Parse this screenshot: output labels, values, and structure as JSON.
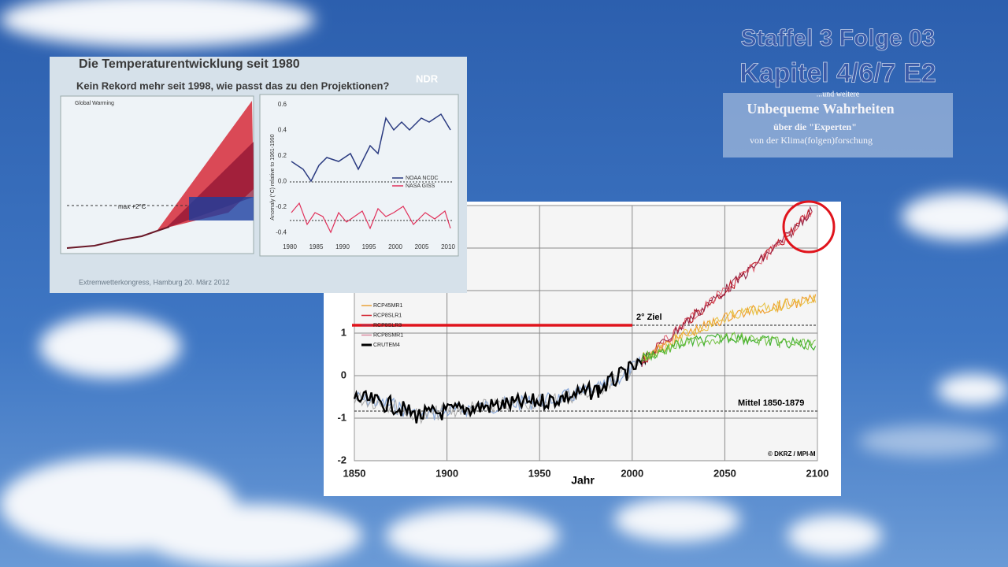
{
  "overlay": {
    "line1": "Staffel 3 Folge 03",
    "line2": "Kapitel 4/6/7 E2",
    "line3": "...und weitere",
    "line4": "Unbequeme Wahrheiten",
    "line5": "über die \"Experten\"",
    "line6": "von der Klima(folgen)forschung"
  },
  "slide": {
    "title": "Die Temperaturentwicklung seit 1980",
    "subtitle": "Kein Rekord mehr seit 1998, wie passt das zu den Projektionen?",
    "logo": "NDR",
    "footer": "Extremwetterkongress, Hamburg 20. März 2012",
    "left_panel": {
      "title": "Global Warming",
      "annotation": "max +2°C"
    },
    "right_panel": {
      "y_label": "Anomaly (°C) relative to 1961-1990",
      "x_ticks": [
        "1980",
        "1985",
        "1990",
        "1995",
        "2000",
        "2005",
        "2010"
      ],
      "y_ticks": [
        "0.6",
        "0.4",
        "0.2",
        "0.0",
        "-0.2",
        "-0.4"
      ],
      "legend": [
        "NOAA NCDC",
        "NASA GISS"
      ]
    }
  },
  "chart": {
    "x_ticks": [
      "1850",
      "1900",
      "1950",
      "2000",
      "2050",
      "2100"
    ],
    "y_ticks": [
      "1",
      "0",
      "-1",
      "-2"
    ],
    "x_label": "Jahr",
    "legend": [
      "RCP45MR1",
      "RCP8SLR1",
      "RCP8SLR3",
      "RCP8SMR1",
      "CRUTEM4"
    ],
    "annotations": {
      "target": "2° Ziel",
      "mean": "Mittel 1850-1879",
      "credit": "© DKRZ / MPI-M"
    }
  }
}
